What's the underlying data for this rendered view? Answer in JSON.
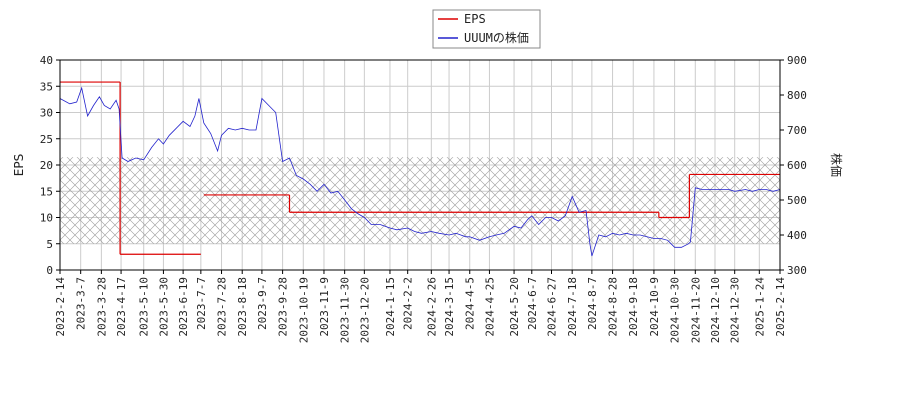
{
  "chart_data": {
    "type": "line",
    "legend": {
      "placement": "top-center",
      "entries": [
        {
          "key": "eps",
          "label": "EPS",
          "color": "#dd0000"
        },
        {
          "key": "price",
          "label": "UUUMの株価",
          "color": "#2222cc"
        }
      ]
    },
    "x_axis": {
      "type": "date",
      "range": [
        "2023-02-14",
        "2025-02-14"
      ],
      "tick_labels": [
        "2023-2-14",
        "2023-3-7",
        "2023-3-28",
        "2023-4-17",
        "2023-5-10",
        "2023-5-30",
        "2023-6-19",
        "2023-7-7",
        "2023-7-28",
        "2023-8-18",
        "2023-9-7",
        "2023-9-28",
        "2023-10-19",
        "2023-11-9",
        "2023-11-30",
        "2023-12-20",
        "2024-1-15",
        "2024-2-2",
        "2024-2-26",
        "2024-3-15",
        "2024-4-5",
        "2024-4-25",
        "2024-5-20",
        "2024-6-7",
        "2024-6-27",
        "2024-7-18",
        "2024-8-7",
        "2024-8-28",
        "2024-9-18",
        "2024-10-9",
        "2024-10-30",
        "2024-11-20",
        "2024-12-10",
        "2024-12-30",
        "2025-1-24",
        "2025-2-14"
      ]
    },
    "y_left": {
      "label": "EPS",
      "range": [
        0,
        40
      ],
      "ticks": [
        0,
        5,
        10,
        15,
        20,
        25,
        30,
        35,
        40
      ]
    },
    "y_right": {
      "label": "株価",
      "range": [
        300,
        900
      ],
      "ticks": [
        300,
        400,
        500,
        600,
        700,
        800,
        900
      ]
    },
    "grid": true,
    "hatched_band": {
      "axis": "left",
      "y_range": [
        5,
        21.5
      ]
    },
    "eps_series": [
      {
        "x": [
          "2023-02-14",
          "2023-04-16"
        ],
        "y": 35.8
      },
      {
        "x": [
          "2023-04-16",
          "2023-07-07"
        ],
        "y": 3.0
      },
      {
        "x": [
          "2023-07-10",
          "2023-10-05"
        ],
        "y": 14.3
      },
      {
        "x": [
          "2023-10-05",
          "2024-10-14"
        ],
        "y": 11.0
      },
      {
        "x": [
          "2024-10-14",
          "2024-11-14"
        ],
        "y": 10.0
      },
      {
        "x": [
          "2024-11-14",
          "2025-02-14"
        ],
        "y": 18.2
      }
    ],
    "price_series": {
      "x": [
        "2023-02-14",
        "2023-02-24",
        "2023-03-03",
        "2023-03-08",
        "2023-03-14",
        "2023-03-20",
        "2023-03-26",
        "2023-03-31",
        "2023-04-06",
        "2023-04-12",
        "2023-04-15",
        "2023-04-18",
        "2023-04-24",
        "2023-05-02",
        "2023-05-10",
        "2023-05-18",
        "2023-05-25",
        "2023-05-30",
        "2023-06-05",
        "2023-06-12",
        "2023-06-19",
        "2023-06-26",
        "2023-07-01",
        "2023-07-05",
        "2023-07-10",
        "2023-07-17",
        "2023-07-24",
        "2023-07-28",
        "2023-08-04",
        "2023-08-11",
        "2023-08-18",
        "2023-08-25",
        "2023-09-01",
        "2023-09-07",
        "2023-09-14",
        "2023-09-21",
        "2023-09-28",
        "2023-10-05",
        "2023-10-12",
        "2023-10-19",
        "2023-10-26",
        "2023-11-02",
        "2023-11-09",
        "2023-11-16",
        "2023-11-23",
        "2023-11-30",
        "2023-12-07",
        "2023-12-14",
        "2023-12-20",
        "2023-12-27",
        "2024-01-05",
        "2024-01-15",
        "2024-01-22",
        "2024-02-02",
        "2024-02-09",
        "2024-02-16",
        "2024-02-26",
        "2024-03-05",
        "2024-03-15",
        "2024-03-22",
        "2024-04-01",
        "2024-04-05",
        "2024-04-15",
        "2024-04-25",
        "2024-05-02",
        "2024-05-10",
        "2024-05-20",
        "2024-05-27",
        "2024-06-03",
        "2024-06-07",
        "2024-06-14",
        "2024-06-21",
        "2024-06-27",
        "2024-07-04",
        "2024-07-11",
        "2024-07-18",
        "2024-07-25",
        "2024-08-01",
        "2024-08-05",
        "2024-08-07",
        "2024-08-14",
        "2024-08-21",
        "2024-08-28",
        "2024-09-04",
        "2024-09-11",
        "2024-09-18",
        "2024-09-25",
        "2024-10-02",
        "2024-10-09",
        "2024-10-16",
        "2024-10-23",
        "2024-10-30",
        "2024-11-06",
        "2024-11-13",
        "2024-11-15",
        "2024-11-20",
        "2024-11-27",
        "2024-12-04",
        "2024-12-10",
        "2024-12-17",
        "2024-12-24",
        "2024-12-30",
        "2025-01-10",
        "2025-01-17",
        "2025-01-24",
        "2025-01-31",
        "2025-02-07",
        "2025-02-14"
      ],
      "y": [
        790,
        775,
        780,
        820,
        740,
        770,
        795,
        770,
        760,
        785,
        760,
        620,
        610,
        620,
        615,
        650,
        675,
        660,
        685,
        705,
        725,
        710,
        740,
        790,
        720,
        690,
        640,
        685,
        705,
        700,
        705,
        700,
        700,
        790,
        770,
        750,
        610,
        620,
        570,
        560,
        545,
        525,
        545,
        520,
        525,
        500,
        475,
        460,
        450,
        430,
        430,
        420,
        415,
        420,
        410,
        405,
        410,
        405,
        400,
        405,
        395,
        395,
        385,
        395,
        400,
        405,
        425,
        420,
        445,
        455,
        430,
        450,
        450,
        440,
        455,
        510,
        465,
        470,
        375,
        340,
        400,
        395,
        405,
        400,
        405,
        400,
        400,
        395,
        390,
        390,
        385,
        365,
        365,
        375,
        380,
        535,
        530,
        530,
        530,
        530,
        530,
        525,
        530,
        525,
        530,
        530,
        525,
        530
      ]
    }
  }
}
